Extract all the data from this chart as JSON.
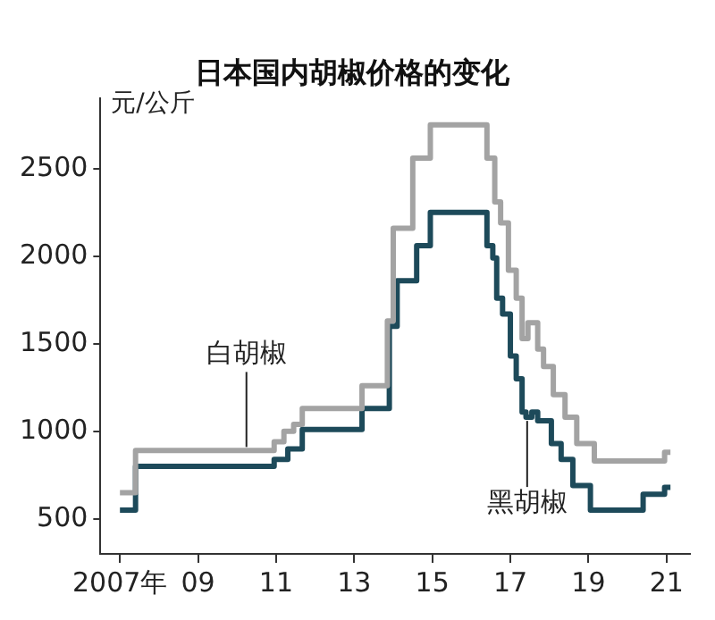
{
  "chart_data": {
    "type": "step",
    "title": "日本国内胡椒价格的变化",
    "ylabel": "元/公斤",
    "xlim": [
      2006.5,
      2021.6
    ],
    "xticks": [
      {
        "value": 2007,
        "label": "2007年"
      },
      {
        "value": 2009,
        "label": "09"
      },
      {
        "value": 2011,
        "label": "11"
      },
      {
        "value": 2013,
        "label": "13"
      },
      {
        "value": 2015,
        "label": "15"
      },
      {
        "value": 2017,
        "label": "17"
      },
      {
        "value": 2019,
        "label": "19"
      },
      {
        "value": 2021,
        "label": "21"
      }
    ],
    "ylim": [
      300,
      2900
    ],
    "yticks": [
      500,
      1000,
      1500,
      2000,
      2500
    ],
    "grid": false,
    "legend": false,
    "marker": "none",
    "line_style": "solid",
    "series": [
      {
        "name": "白胡椒",
        "color": "#a3a3a3",
        "x": [
          2007.0,
          2007.4,
          2010.95,
          2011.2,
          2011.45,
          2011.67,
          2013.2,
          2013.85,
          2014.0,
          2014.5,
          2014.95,
          2016.4,
          2016.6,
          2016.75,
          2016.95,
          2017.15,
          2017.3,
          2017.45,
          2017.7,
          2017.85,
          2018.1,
          2018.4,
          2018.7,
          2019.15,
          2020.95,
          2021.1
        ],
        "values": [
          650,
          890,
          940,
          1000,
          1040,
          1130,
          1260,
          1630,
          2160,
          2560,
          2750,
          2560,
          2310,
          2190,
          1920,
          1760,
          1530,
          1620,
          1470,
          1370,
          1210,
          1080,
          930,
          830,
          880,
          880
        ]
      },
      {
        "name": "黑胡椒",
        "color": "#1d4a5a",
        "x": [
          2007.0,
          2007.4,
          2010.95,
          2011.3,
          2011.67,
          2013.2,
          2013.9,
          2014.1,
          2014.6,
          2014.95,
          2016.4,
          2016.55,
          2016.65,
          2016.8,
          2017.0,
          2017.15,
          2017.3,
          2017.4,
          2017.55,
          2017.7,
          2018.05,
          2018.3,
          2018.6,
          2019.05,
          2020.4,
          2020.95,
          2021.1
        ],
        "values": [
          550,
          800,
          840,
          900,
          1010,
          1130,
          1600,
          1860,
          2060,
          2250,
          2060,
          1990,
          1760,
          1670,
          1430,
          1300,
          1110,
          1080,
          1110,
          1060,
          930,
          840,
          690,
          550,
          640,
          680,
          680
        ]
      }
    ]
  }
}
